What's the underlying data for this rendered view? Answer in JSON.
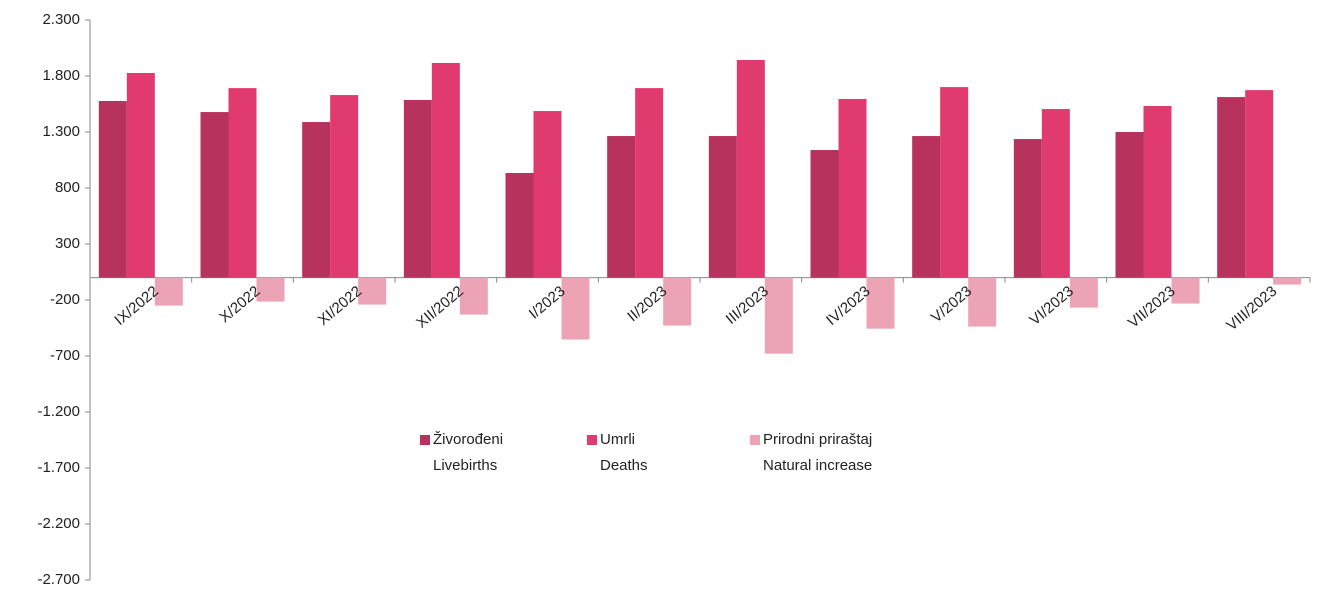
{
  "chart_data": {
    "type": "bar",
    "categories": [
      "IX/2022",
      "X/2022",
      "XI/2022",
      "XII/2022",
      "I/2023",
      "II/2023",
      "III/2023",
      "IV/2023",
      "V/2023",
      "VI/2023",
      "VII/2023",
      "VIII/2023"
    ],
    "series": [
      {
        "name": "Živorođeni\nLivebirths",
        "color": "#b8325e",
        "values": [
          1577,
          1478,
          1389,
          1586,
          934,
          1264,
          1264,
          1139,
          1264,
          1237,
          1300,
          1612
        ]
      },
      {
        "name": "Umrli\nDeaths",
        "color": "#e03a6e",
        "values": [
          1827,
          1692,
          1630,
          1916,
          1487,
          1692,
          1943,
          1595,
          1701,
          1505,
          1532,
          1674
        ]
      },
      {
        "name": "Prirodni priraštaj\nNatural increase",
        "color": "#eba3b5",
        "values": [
          -250,
          -214,
          -241,
          -330,
          -553,
          -428,
          -679,
          -456,
          -437,
          -268,
          -232,
          -62
        ]
      }
    ],
    "ylim": [
      -2700,
      2300
    ],
    "yticks": [
      {
        "value": -2700,
        "label": "-2.700"
      },
      {
        "value": -2200,
        "label": "-2.200"
      },
      {
        "value": -1700,
        "label": "-1.700"
      },
      {
        "value": -1200,
        "label": "-1.200"
      },
      -700,
      -200,
      300,
      800,
      {
        "value": 1300,
        "label": "1.300"
      },
      {
        "value": 1800,
        "label": "1.800"
      },
      {
        "value": 2300,
        "label": "2.300"
      }
    ],
    "grid": false
  }
}
